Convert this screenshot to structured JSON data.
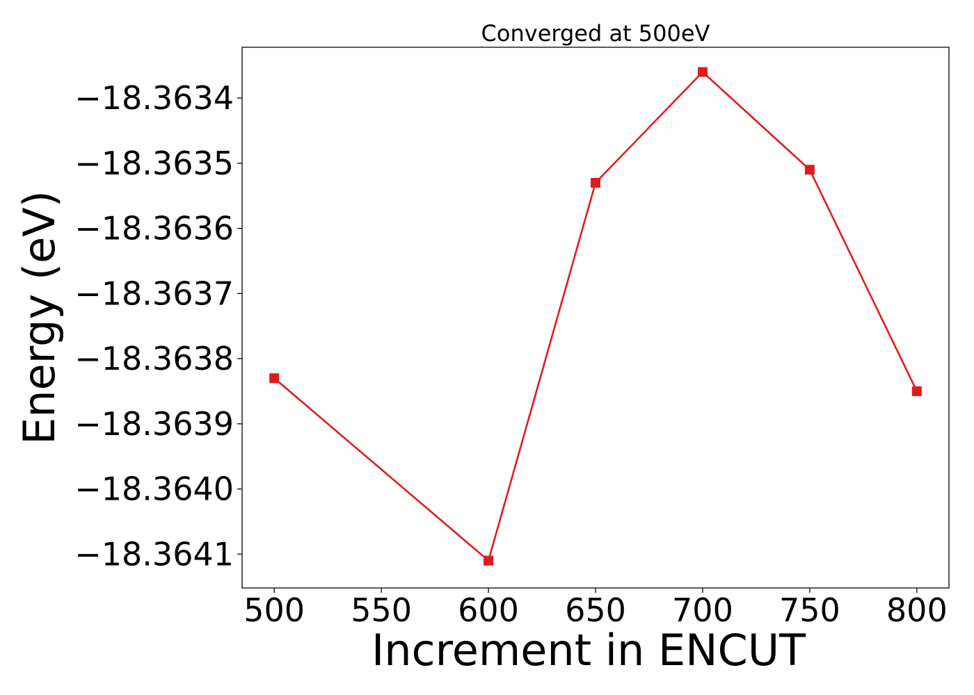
{
  "chart_data": {
    "type": "line",
    "title": "Converged at 500eV",
    "xlabel": "Increment in ENCUT",
    "ylabel": "Energy (eV)",
    "x": [
      500,
      600,
      650,
      700,
      750,
      800
    ],
    "series": [
      {
        "values": [
          -18.36383,
          -18.36411,
          -18.36353,
          -18.36336,
          -18.36351,
          -18.36385
        ],
        "color": "#e31a1c",
        "marker": "square"
      }
    ],
    "xticks": [
      500,
      550,
      600,
      650,
      700,
      750,
      800
    ],
    "xtick_labels": [
      "500",
      "550",
      "600",
      "650",
      "700",
      "750",
      "800"
    ],
    "yticks": [
      -18.3634,
      -18.3635,
      -18.3636,
      -18.3637,
      -18.3638,
      -18.3639,
      -18.364,
      -18.3641
    ],
    "ytick_labels": [
      "−18.3634",
      "−18.3635",
      "−18.3636",
      "−18.3637",
      "−18.3638",
      "−18.3639",
      "−18.3640",
      "−18.3641"
    ],
    "xlim": [
      485,
      815
    ],
    "ylim": [
      -18.364152,
      -18.363322
    ],
    "grid": false,
    "legend": "none"
  }
}
